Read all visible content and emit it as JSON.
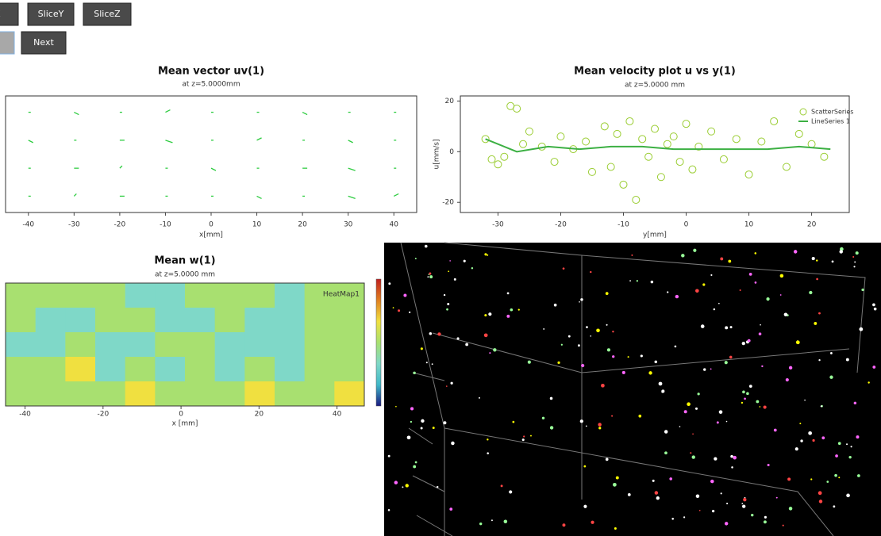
{
  "controls": {
    "rows": [
      [
        "eX",
        "SliceY",
        "SliceZ"
      ],
      [
        "y",
        "Next"
      ]
    ]
  },
  "chart_data": [
    {
      "type": "quiver",
      "title": "Mean vector uv(1)",
      "subtitle": "at z=5.0000mm",
      "x_label": "x[mm]",
      "color": "#2ecc40",
      "xlim": [
        -45,
        45
      ],
      "ylim": [
        -25,
        25
      ],
      "xticks": [
        -40,
        -30,
        -20,
        -10,
        0,
        10,
        20,
        30,
        40
      ],
      "x": [
        -40,
        -30,
        -20,
        -10,
        0,
        10,
        20,
        30,
        40,
        -40,
        -30,
        -20,
        -10,
        0,
        10,
        20,
        30,
        40,
        -40,
        -30,
        -20,
        -10,
        0,
        10,
        20,
        30,
        40,
        -40,
        -30,
        -20,
        -10,
        0,
        10,
        20,
        30,
        40
      ],
      "y": [
        18,
        18,
        18,
        18,
        18,
        18,
        18,
        18,
        18,
        6,
        6,
        6,
        6,
        6,
        6,
        6,
        6,
        6,
        -6,
        -6,
        -6,
        -6,
        -6,
        -6,
        -6,
        -6,
        -6,
        -18,
        -18,
        -18,
        -18,
        -18,
        -18,
        -18,
        -18,
        -18
      ],
      "u": [
        1,
        2,
        1,
        2,
        1,
        1,
        2,
        1,
        1,
        2,
        1,
        2,
        3,
        1,
        2,
        1,
        2,
        1,
        1,
        2,
        1,
        1,
        2,
        1,
        2,
        3,
        1,
        1,
        1,
        2,
        1,
        1,
        2,
        1,
        3,
        2
      ],
      "v": [
        0,
        -1,
        0,
        1,
        0,
        0,
        -1,
        0,
        0,
        -1,
        0,
        0,
        -1,
        0,
        1,
        0,
        -1,
        0,
        0,
        0,
        1,
        0,
        -1,
        0,
        0,
        -1,
        0,
        0,
        1,
        0,
        0,
        0,
        -1,
        0,
        -1,
        1
      ]
    },
    {
      "type": "scatter",
      "title": "Mean velocity plot u vs y(1)",
      "subtitle": "at z=5.0000 mm",
      "x_label": "y[mm]",
      "y_label": "u[mm/s]",
      "xlim": [
        -36,
        26
      ],
      "ylim": [
        -24,
        22
      ],
      "xticks": [
        -30,
        -20,
        -10,
        0,
        10,
        20
      ],
      "yticks": [
        -20,
        0,
        20
      ],
      "legend": "top-right",
      "series": [
        {
          "name": "ScatterSeries",
          "kind": "markers",
          "color": "#9acd32",
          "x": [
            -32,
            -31,
            -30,
            -29,
            -28,
            -27,
            -26,
            -25,
            -23,
            -21,
            -20,
            -18,
            -16,
            -15,
            -13,
            -12,
            -11,
            -10,
            -9,
            -8,
            -7,
            -6,
            -5,
            -4,
            -3,
            -2,
            -1,
            0,
            1,
            2,
            4,
            6,
            8,
            10,
            12,
            14,
            16,
            18,
            20,
            22
          ],
          "values": [
            5,
            -3,
            -5,
            -2,
            18,
            17,
            3,
            8,
            2,
            -4,
            6,
            1,
            4,
            -8,
            10,
            -6,
            7,
            -13,
            12,
            -19,
            5,
            -2,
            9,
            -10,
            3,
            6,
            -4,
            11,
            -7,
            2,
            8,
            -3,
            5,
            -9,
            4,
            12,
            -6,
            7,
            3,
            -2
          ]
        },
        {
          "name": "LineSeries 1",
          "kind": "line",
          "color": "#3cb043",
          "x": [
            -32,
            -27,
            -22,
            -17,
            -12,
            -7,
            -2,
            3,
            8,
            13,
            18,
            23
          ],
          "values": [
            5,
            0,
            2,
            1,
            2,
            2,
            1,
            1,
            1,
            1,
            2,
            1
          ]
        }
      ]
    },
    {
      "type": "heatmap",
      "title": "Mean w(1)",
      "subtitle": "at z=5.0000 mm",
      "x_label": "x [mm]",
      "legend_label": "HeatMap1",
      "xlim": [
        -45,
        47
      ],
      "xticks": [
        -40,
        -20,
        0,
        20,
        40
      ],
      "zlim": [
        -3,
        3
      ],
      "colormap": [
        "#1a1a80",
        "#3fb8c8",
        "#7fd8c8",
        "#a8e070",
        "#f0e040",
        "#e08020",
        "#c02020"
      ],
      "values": [
        [
          0,
          0,
          0,
          0,
          -1,
          -1,
          0,
          0,
          0,
          -1,
          0,
          0
        ],
        [
          0,
          -1,
          -1,
          0,
          0,
          -1,
          -1,
          0,
          -1,
          -1,
          0,
          0
        ],
        [
          -1,
          -1,
          0,
          -1,
          -1,
          0,
          0,
          -1,
          -1,
          -1,
          0,
          0
        ],
        [
          0,
          0,
          1,
          -1,
          0,
          -1,
          0,
          -1,
          0,
          -1,
          0,
          0
        ],
        [
          0,
          0,
          0,
          0,
          1,
          0,
          0,
          0,
          1,
          0,
          0,
          1
        ]
      ]
    }
  ]
}
